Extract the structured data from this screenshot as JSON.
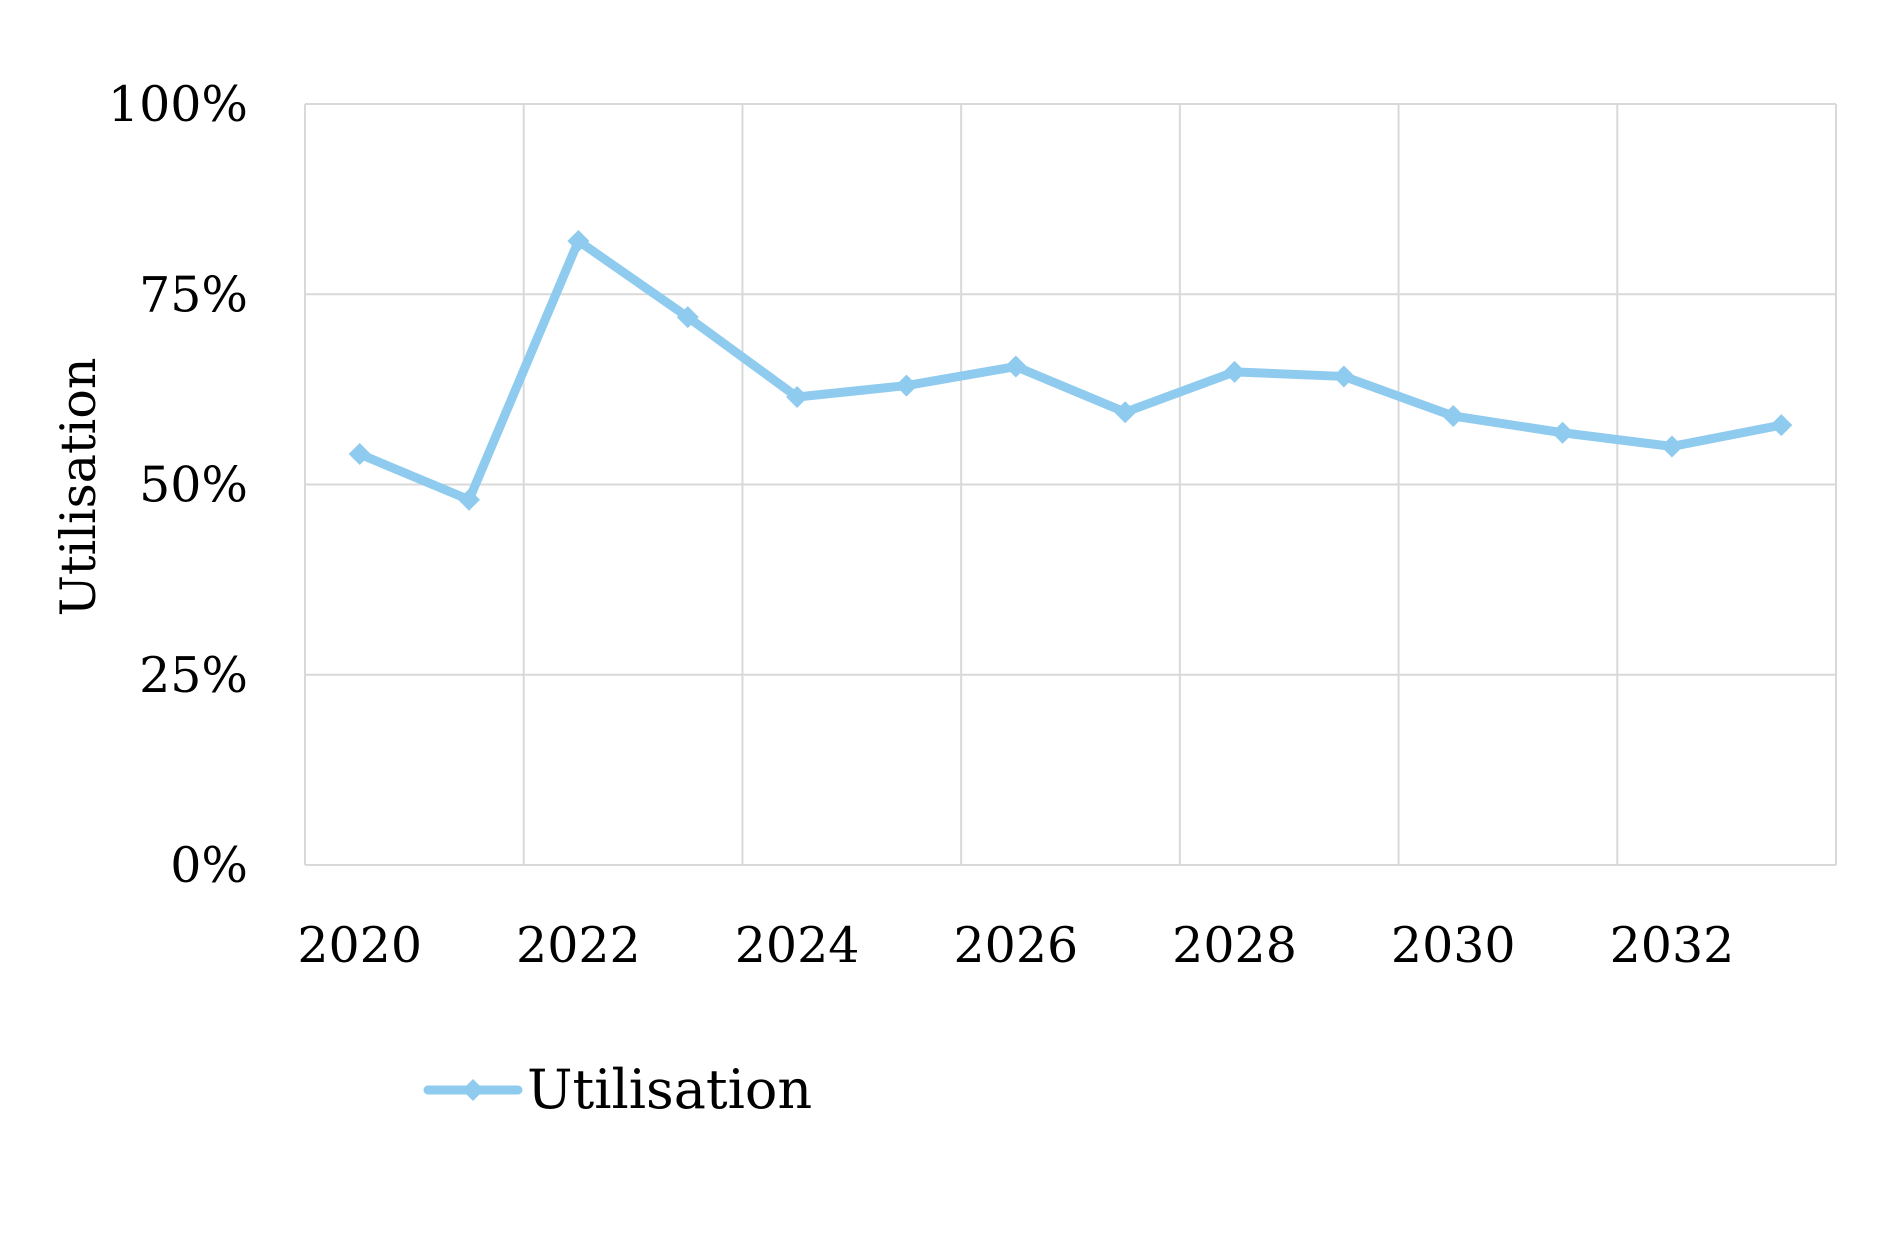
{
  "chart_data": {
    "type": "line",
    "xlabel": "",
    "ylabel": "Utilisation",
    "x_tick_labels": [
      "2020",
      "2022",
      "2024",
      "2026",
      "2028",
      "2030",
      "2032"
    ],
    "y_tick_labels": [
      "0%",
      "25%",
      "50%",
      "75%",
      "100%"
    ],
    "ylim": [
      0,
      100
    ],
    "grid": true,
    "legend_position": "bottom-left",
    "series": [
      {
        "name": "Utilisation",
        "color": "#8fcbee",
        "marker": "diamond",
        "x": [
          2020,
          2021,
          2022,
          2023,
          2024,
          2025,
          2026,
          2027,
          2028,
          2029,
          2030,
          2031,
          2032,
          2033
        ],
        "values": [
          54,
          48,
          82,
          72,
          61.5,
          63,
          65.5,
          59.5,
          64.8,
          64.2,
          59,
          56.8,
          55,
          57.8
        ]
      }
    ]
  }
}
